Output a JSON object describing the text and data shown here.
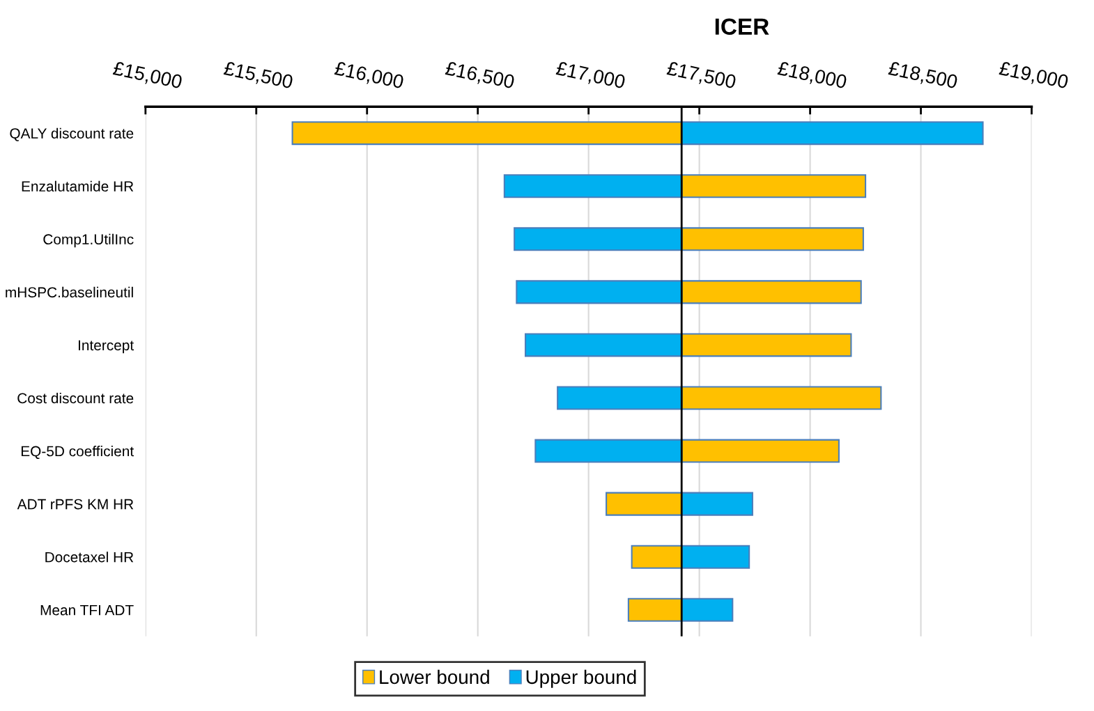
{
  "chart_data": {
    "type": "bar",
    "orientation": "horizontal",
    "title": "ICER",
    "categories": [
      "QALY discount rate",
      "Enzalutamide HR",
      "Comp1.UtilInc",
      "mHSPC.baselineutil",
      "Intercept",
      "Cost discount rate",
      "EQ-5D coefficient",
      "ADT rPFS KM HR",
      "Docetaxel HR",
      "Mean TFI ADT"
    ],
    "series": [
      {
        "name": "Lower bound",
        "color": "#ffc000",
        "base": [
          17420,
          17420,
          17420,
          17420,
          17420,
          17420,
          17420,
          17420,
          17420,
          17420
        ],
        "values": [
          -1757,
          830,
          820,
          810,
          765,
          900,
          710,
          -340,
          -225,
          -240
        ]
      },
      {
        "name": "Upper bound",
        "color": "#00b0f0",
        "base": [
          17420,
          17420,
          17420,
          17420,
          17420,
          17420,
          17420,
          17420,
          17420,
          17420
        ],
        "values": [
          1360,
          -800,
          -755,
          -745,
          -705,
          -560,
          -660,
          320,
          305,
          230
        ]
      }
    ],
    "xlim": [
      15000,
      19000
    ],
    "xticks": [
      {
        "value": 15000,
        "label": "£15,000"
      },
      {
        "value": 15500,
        "label": "£15,500"
      },
      {
        "value": 16000,
        "label": "£16,000"
      },
      {
        "value": 16500,
        "label": "£16,500"
      },
      {
        "value": 17000,
        "label": "£17,000"
      },
      {
        "value": 17500,
        "label": "£17,500"
      },
      {
        "value": 18000,
        "label": "£18,000"
      },
      {
        "value": 18500,
        "label": "£18,500"
      },
      {
        "value": 19000,
        "label": "£19,000"
      }
    ],
    "ref_lines": [
      {
        "axis": "x",
        "value": 17420,
        "color": "#000000"
      }
    ],
    "grid": "x",
    "legend": "bottom"
  }
}
